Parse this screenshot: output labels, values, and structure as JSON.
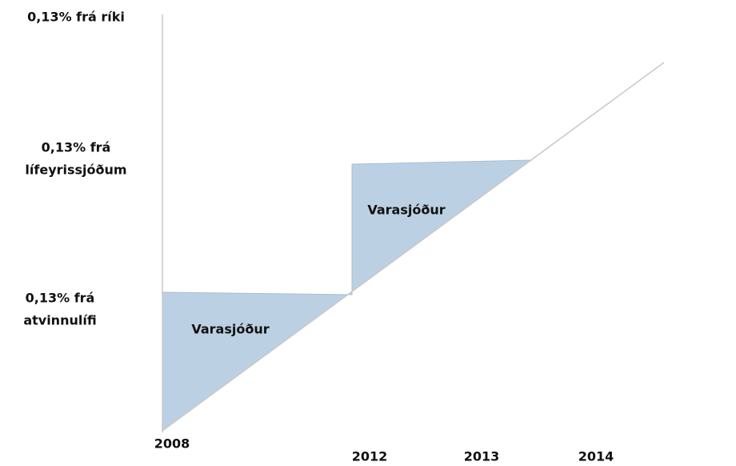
{
  "y_labels": [
    [
      "0,13% frá ríki"
    ],
    [
      "0,13% frá",
      "lífeyrissjóðum"
    ],
    [
      "0,13% frá",
      "atvinnulífi"
    ]
  ],
  "x_labels": [
    "2008",
    "2012",
    "2013",
    "2014"
  ],
  "regions": [
    "Varasjóður",
    "Varasjóður"
  ]
}
